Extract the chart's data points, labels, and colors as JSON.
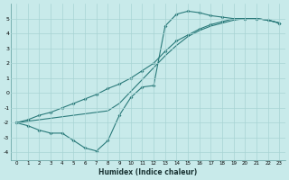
{
  "xlabel": "Humidex (Indice chaleur)",
  "background_color": "#c8eaea",
  "grid_color": "#a8d4d4",
  "line_color": "#2a7a7a",
  "x_data": [
    0,
    1,
    2,
    3,
    4,
    5,
    6,
    7,
    8,
    9,
    10,
    11,
    12,
    13,
    14,
    15,
    16,
    17,
    18,
    19,
    20,
    21,
    22,
    23
  ],
  "line1_y": [
    -2.0,
    -2.2,
    -2.5,
    -2.7,
    -2.7,
    -3.2,
    -3.7,
    -3.9,
    -3.2,
    -1.5,
    -0.3,
    0.4,
    0.5,
    4.5,
    5.3,
    5.5,
    5.4,
    5.2,
    5.1,
    5.0,
    5.0,
    5.0,
    4.9,
    4.7
  ],
  "line2_y": [
    -2.0,
    -1.8,
    -1.5,
    -1.3,
    -1.0,
    -0.7,
    -0.4,
    -0.1,
    0.3,
    0.6,
    1.0,
    1.5,
    2.0,
    2.8,
    3.5,
    3.9,
    4.3,
    4.6,
    4.8,
    5.0,
    5.0,
    5.0,
    4.9,
    4.7
  ],
  "line3_y": [
    -2.0,
    -1.9,
    -1.8,
    -1.7,
    -1.6,
    -1.5,
    -1.4,
    -1.3,
    -1.2,
    -0.7,
    0.1,
    0.9,
    1.7,
    2.5,
    3.2,
    3.8,
    4.2,
    4.5,
    4.7,
    4.9,
    5.0,
    5.0,
    4.9,
    4.7
  ],
  "ylim": [
    -4.5,
    6.0
  ],
  "xlim": [
    -0.5,
    23.5
  ],
  "yticks": [
    -4,
    -3,
    -2,
    -1,
    0,
    1,
    2,
    3,
    4,
    5
  ],
  "xticks": [
    0,
    1,
    2,
    3,
    4,
    5,
    6,
    7,
    8,
    9,
    10,
    11,
    12,
    13,
    14,
    15,
    16,
    17,
    18,
    19,
    20,
    21,
    22,
    23
  ]
}
